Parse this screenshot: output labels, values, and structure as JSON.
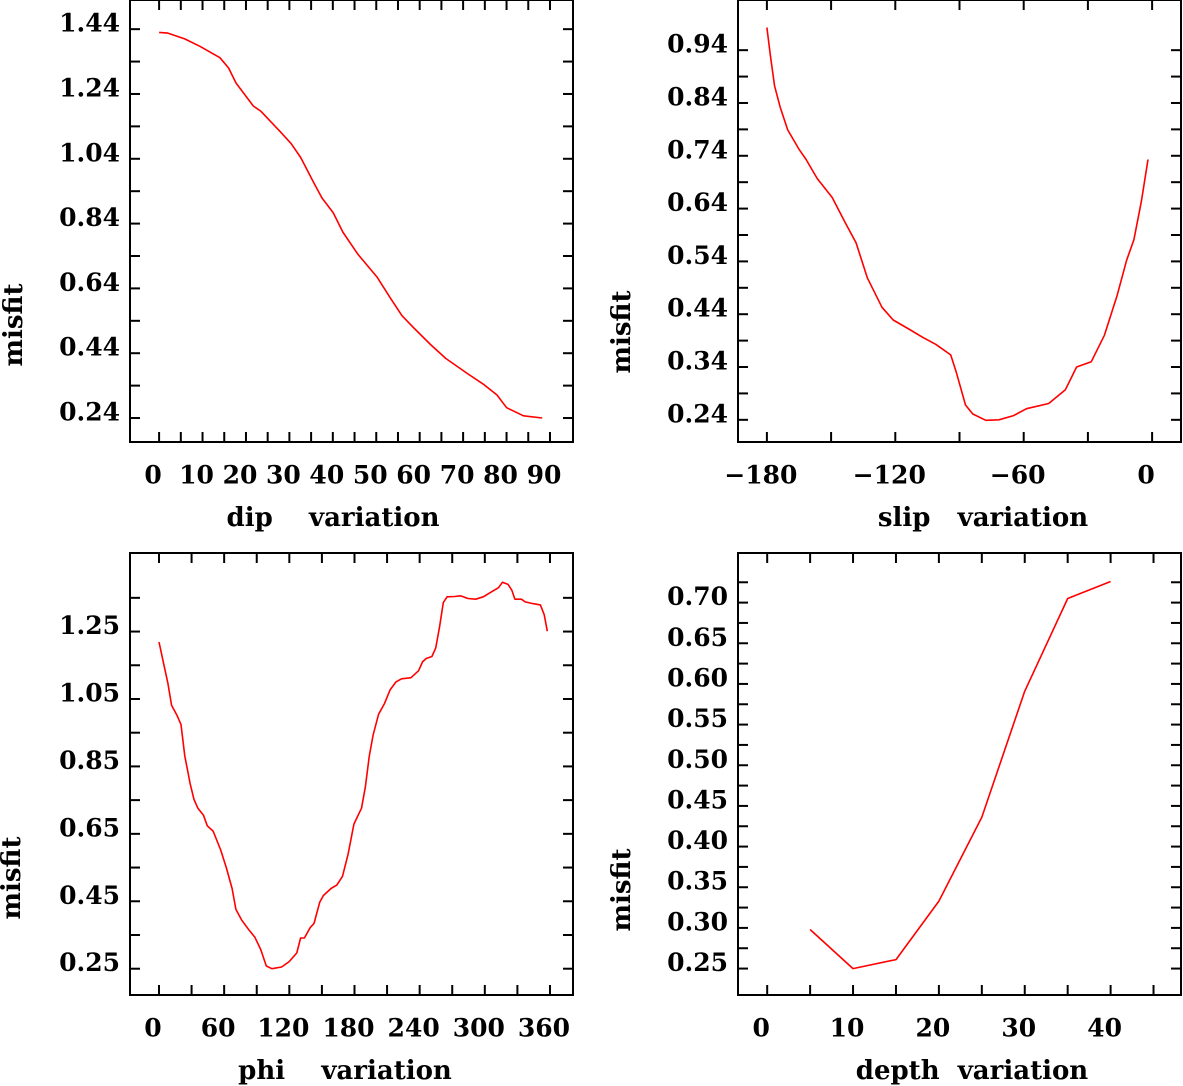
{
  "chart_data": [
    {
      "id": "dip",
      "type": "line",
      "xlabel": "dip    variation",
      "ylabel": "misfit",
      "xlim": [
        -6.7,
        95.3
      ],
      "ylim": [
        0.166,
        1.53
      ],
      "grid": false,
      "x_ticks": [
        0,
        5,
        10,
        15,
        20,
        25,
        30,
        35,
        40,
        45,
        50,
        55,
        60,
        65,
        70,
        75,
        80,
        85,
        90
      ],
      "x_tick_labels": [
        {
          "v": 0,
          "t": "0"
        },
        {
          "v": 10,
          "t": "10"
        },
        {
          "v": 20,
          "t": "20"
        },
        {
          "v": 30,
          "t": "30"
        },
        {
          "v": 40,
          "t": "40"
        },
        {
          "v": 50,
          "t": "50"
        },
        {
          "v": 60,
          "t": "60"
        },
        {
          "v": 70,
          "t": "70"
        },
        {
          "v": 80,
          "t": "80"
        },
        {
          "v": 90,
          "t": "90"
        }
      ],
      "y_ticks": [
        0.24,
        0.34,
        0.44,
        0.54,
        0.64,
        0.74,
        0.84,
        0.94,
        1.04,
        1.14,
        1.24,
        1.34,
        1.44
      ],
      "y_tick_labels": [
        {
          "v": 0.24,
          "t": "0.24"
        },
        {
          "v": 0.44,
          "t": "0.44"
        },
        {
          "v": 0.64,
          "t": "0.64"
        },
        {
          "v": 0.84,
          "t": "0.84"
        },
        {
          "v": 1.04,
          "t": "1.04"
        },
        {
          "v": 1.24,
          "t": "1.24"
        },
        {
          "v": 1.44,
          "t": "1.44"
        }
      ],
      "series": [
        {
          "name": "misfit",
          "color": "#ff0000",
          "x": [
            0,
            2,
            5.9,
            9.4,
            14,
            16,
            17.7,
            21.7,
            23.4,
            27.8,
            30.4,
            32.6,
            35.7,
            37.5,
            40.1,
            42.3,
            45.8,
            50.2,
            53.2,
            55.9,
            58.5,
            62.5,
            66,
            70.8,
            74.7,
            77.8,
            80,
            83.9,
            88.2
          ],
          "y": [
            1.43,
            1.428,
            1.41,
            1.387,
            1.352,
            1.32,
            1.274,
            1.203,
            1.187,
            1.125,
            1.087,
            1.044,
            0.964,
            0.919,
            0.873,
            0.814,
            0.745,
            0.675,
            0.611,
            0.556,
            0.52,
            0.467,
            0.424,
            0.379,
            0.344,
            0.311,
            0.272,
            0.247,
            0.24
          ]
        }
      ]
    },
    {
      "id": "slip",
      "type": "line",
      "xlabel": "slip   variation",
      "ylabel": "misfit",
      "xlim": [
        -193.5,
        13.5
      ],
      "ylim": [
        0.198,
        1.035
      ],
      "grid": false,
      "x_ticks": [
        -180,
        -150,
        -120,
        -90,
        -60,
        -30,
        0
      ],
      "x_tick_labels": [
        {
          "v": -180,
          "t": "−180"
        },
        {
          "v": -120,
          "t": "−120"
        },
        {
          "v": -60,
          "t": "−60"
        },
        {
          "v": 0,
          "t": "0"
        }
      ],
      "y_ticks": [
        0.24,
        0.29,
        0.34,
        0.39,
        0.44,
        0.49,
        0.54,
        0.59,
        0.64,
        0.69,
        0.74,
        0.79,
        0.84,
        0.89,
        0.94
      ],
      "y_tick_labels": [
        {
          "v": 0.24,
          "t": "0.24"
        },
        {
          "v": 0.34,
          "t": "0.34"
        },
        {
          "v": 0.44,
          "t": "0.44"
        },
        {
          "v": 0.54,
          "t": "0.54"
        },
        {
          "v": 0.64,
          "t": "0.64"
        },
        {
          "v": 0.74,
          "t": "0.74"
        },
        {
          "v": 0.84,
          "t": "0.84"
        },
        {
          "v": 0.94,
          "t": "0.94"
        }
      ],
      "series": [
        {
          "name": "misfit",
          "color": "#ff0000",
          "x": [
            -180,
            -178.4,
            -176.4,
            -173.8,
            -170.3,
            -165.1,
            -161.7,
            -156.5,
            -149.5,
            -143.5,
            -138.3,
            -133.1,
            -126.2,
            -121,
            -114.1,
            -107.1,
            -101.1,
            -94.1,
            -91.5,
            -87.2,
            -83.8,
            -77.7,
            -71.6,
            -64.7,
            -58.7,
            -48.3,
            -40.5,
            -35.3,
            -28.4,
            -22.3,
            -16.3,
            -11.9,
            -8.5,
            -5,
            -1.9
          ],
          "y": [
            0.983,
            0.931,
            0.872,
            0.832,
            0.789,
            0.753,
            0.733,
            0.697,
            0.661,
            0.614,
            0.575,
            0.509,
            0.453,
            0.429,
            0.413,
            0.396,
            0.383,
            0.363,
            0.33,
            0.268,
            0.251,
            0.239,
            0.24,
            0.248,
            0.261,
            0.271,
            0.297,
            0.34,
            0.35,
            0.4,
            0.476,
            0.542,
            0.581,
            0.654,
            0.733
          ]
        }
      ]
    },
    {
      "id": "phi",
      "type": "line",
      "xlabel": "phi    variation",
      "ylabel": "misfit",
      "xlim": [
        -26.7,
        381.2
      ],
      "ylim": [
        0.172,
        1.483
      ],
      "grid": false,
      "x_ticks": [
        0,
        30,
        60,
        90,
        120,
        150,
        180,
        210,
        240,
        270,
        300,
        330,
        360
      ],
      "x_tick_labels": [
        {
          "v": 0,
          "t": "0"
        },
        {
          "v": 60,
          "t": "60"
        },
        {
          "v": 120,
          "t": "120"
        },
        {
          "v": 180,
          "t": "180"
        },
        {
          "v": 240,
          "t": "240"
        },
        {
          "v": 300,
          "t": "300"
        },
        {
          "v": 360,
          "t": "360"
        }
      ],
      "y_ticks": [
        0.25,
        0.35,
        0.45,
        0.55,
        0.65,
        0.75,
        0.85,
        0.95,
        1.05,
        1.15,
        1.25,
        1.35
      ],
      "y_tick_labels": [
        {
          "v": 0.25,
          "t": "0.25"
        },
        {
          "v": 0.45,
          "t": "0.45"
        },
        {
          "v": 0.65,
          "t": "0.65"
        },
        {
          "v": 0.85,
          "t": "0.85"
        },
        {
          "v": 1.05,
          "t": "1.05"
        },
        {
          "v": 1.25,
          "t": "1.25"
        }
      ],
      "series": [
        {
          "name": "misfit",
          "color": "#ff0000",
          "x": [
            0,
            4.6,
            8.1,
            11.6,
            16.8,
            20.3,
            23.8,
            28.7,
            32.2,
            35.8,
            41,
            44.5,
            49.8,
            56.8,
            62,
            67.3,
            70.8,
            76,
            83.1,
            88.3,
            93.6,
            98.8,
            104,
            112.9,
            119.9,
            126.9,
            130.4,
            133.9,
            139.2,
            142.7,
            148,
            151.4,
            158.4,
            163.7,
            169,
            174.2,
            179.5,
            186.5,
            190,
            193.6,
            197.1,
            202.2,
            207.5,
            212.8,
            218,
            223.3,
            232,
            239,
            242.6,
            246,
            251.3,
            254.8,
            258.3,
            261.8,
            265.3,
            272.3,
            277.5,
            284.5,
            291.6,
            298.6,
            307.4,
            312.6,
            316.2,
            321.4,
            324.9,
            327.7,
            333.7,
            337.2,
            344.2,
            351.2,
            354.7,
            357.5
          ],
          "y": [
            1.219,
            1.15,
            1.098,
            1.031,
            1.0,
            0.974,
            0.881,
            0.798,
            0.752,
            0.726,
            0.705,
            0.674,
            0.658,
            0.602,
            0.55,
            0.488,
            0.426,
            0.395,
            0.364,
            0.343,
            0.307,
            0.258,
            0.25,
            0.255,
            0.271,
            0.297,
            0.341,
            0.341,
            0.372,
            0.384,
            0.447,
            0.467,
            0.488,
            0.498,
            0.524,
            0.591,
            0.679,
            0.726,
            0.788,
            0.881,
            0.943,
            1.005,
            1.036,
            1.077,
            1.1,
            1.11,
            1.113,
            1.134,
            1.16,
            1.17,
            1.176,
            1.201,
            1.263,
            1.336,
            1.353,
            1.354,
            1.356,
            1.348,
            1.346,
            1.353,
            1.37,
            1.38,
            1.396,
            1.39,
            1.372,
            1.346,
            1.346,
            1.338,
            1.333,
            1.329,
            1.3,
            1.251
          ]
        }
      ]
    },
    {
      "id": "depth",
      "type": "line",
      "xlabel": "depth  variation",
      "ylabel": "misfit",
      "xlim": [
        -3.4,
        48.2
      ],
      "ylim": [
        0.2175,
        0.761
      ],
      "grid": false,
      "x_ticks": [
        0,
        5,
        10,
        15,
        20,
        25,
        30,
        35,
        40,
        45
      ],
      "x_tick_labels": [
        {
          "v": 0,
          "t": "0"
        },
        {
          "v": 10,
          "t": "10"
        },
        {
          "v": 20,
          "t": "20"
        },
        {
          "v": 30,
          "t": "30"
        },
        {
          "v": 40,
          "t": "40"
        }
      ],
      "y_ticks": [
        0.25,
        0.275,
        0.3,
        0.325,
        0.35,
        0.375,
        0.4,
        0.425,
        0.45,
        0.475,
        0.5,
        0.525,
        0.55,
        0.575,
        0.6,
        0.625,
        0.65,
        0.675,
        0.7,
        0.725
      ],
      "y_tick_labels": [
        {
          "v": 0.25,
          "t": "0.25"
        },
        {
          "v": 0.3,
          "t": "0.30"
        },
        {
          "v": 0.35,
          "t": "0.35"
        },
        {
          "v": 0.4,
          "t": "0.40"
        },
        {
          "v": 0.45,
          "t": "0.45"
        },
        {
          "v": 0.5,
          "t": "0.50"
        },
        {
          "v": 0.55,
          "t": "0.55"
        },
        {
          "v": 0.6,
          "t": "0.60"
        },
        {
          "v": 0.65,
          "t": "0.65"
        },
        {
          "v": 0.7,
          "t": "0.70"
        }
      ],
      "series": [
        {
          "name": "misfit",
          "color": "#ff0000",
          "x": [
            5,
            10,
            15,
            20,
            25,
            30,
            35,
            40
          ],
          "y": [
            0.298,
            0.25,
            0.261,
            0.333,
            0.436,
            0.591,
            0.705,
            0.726
          ]
        }
      ]
    }
  ]
}
